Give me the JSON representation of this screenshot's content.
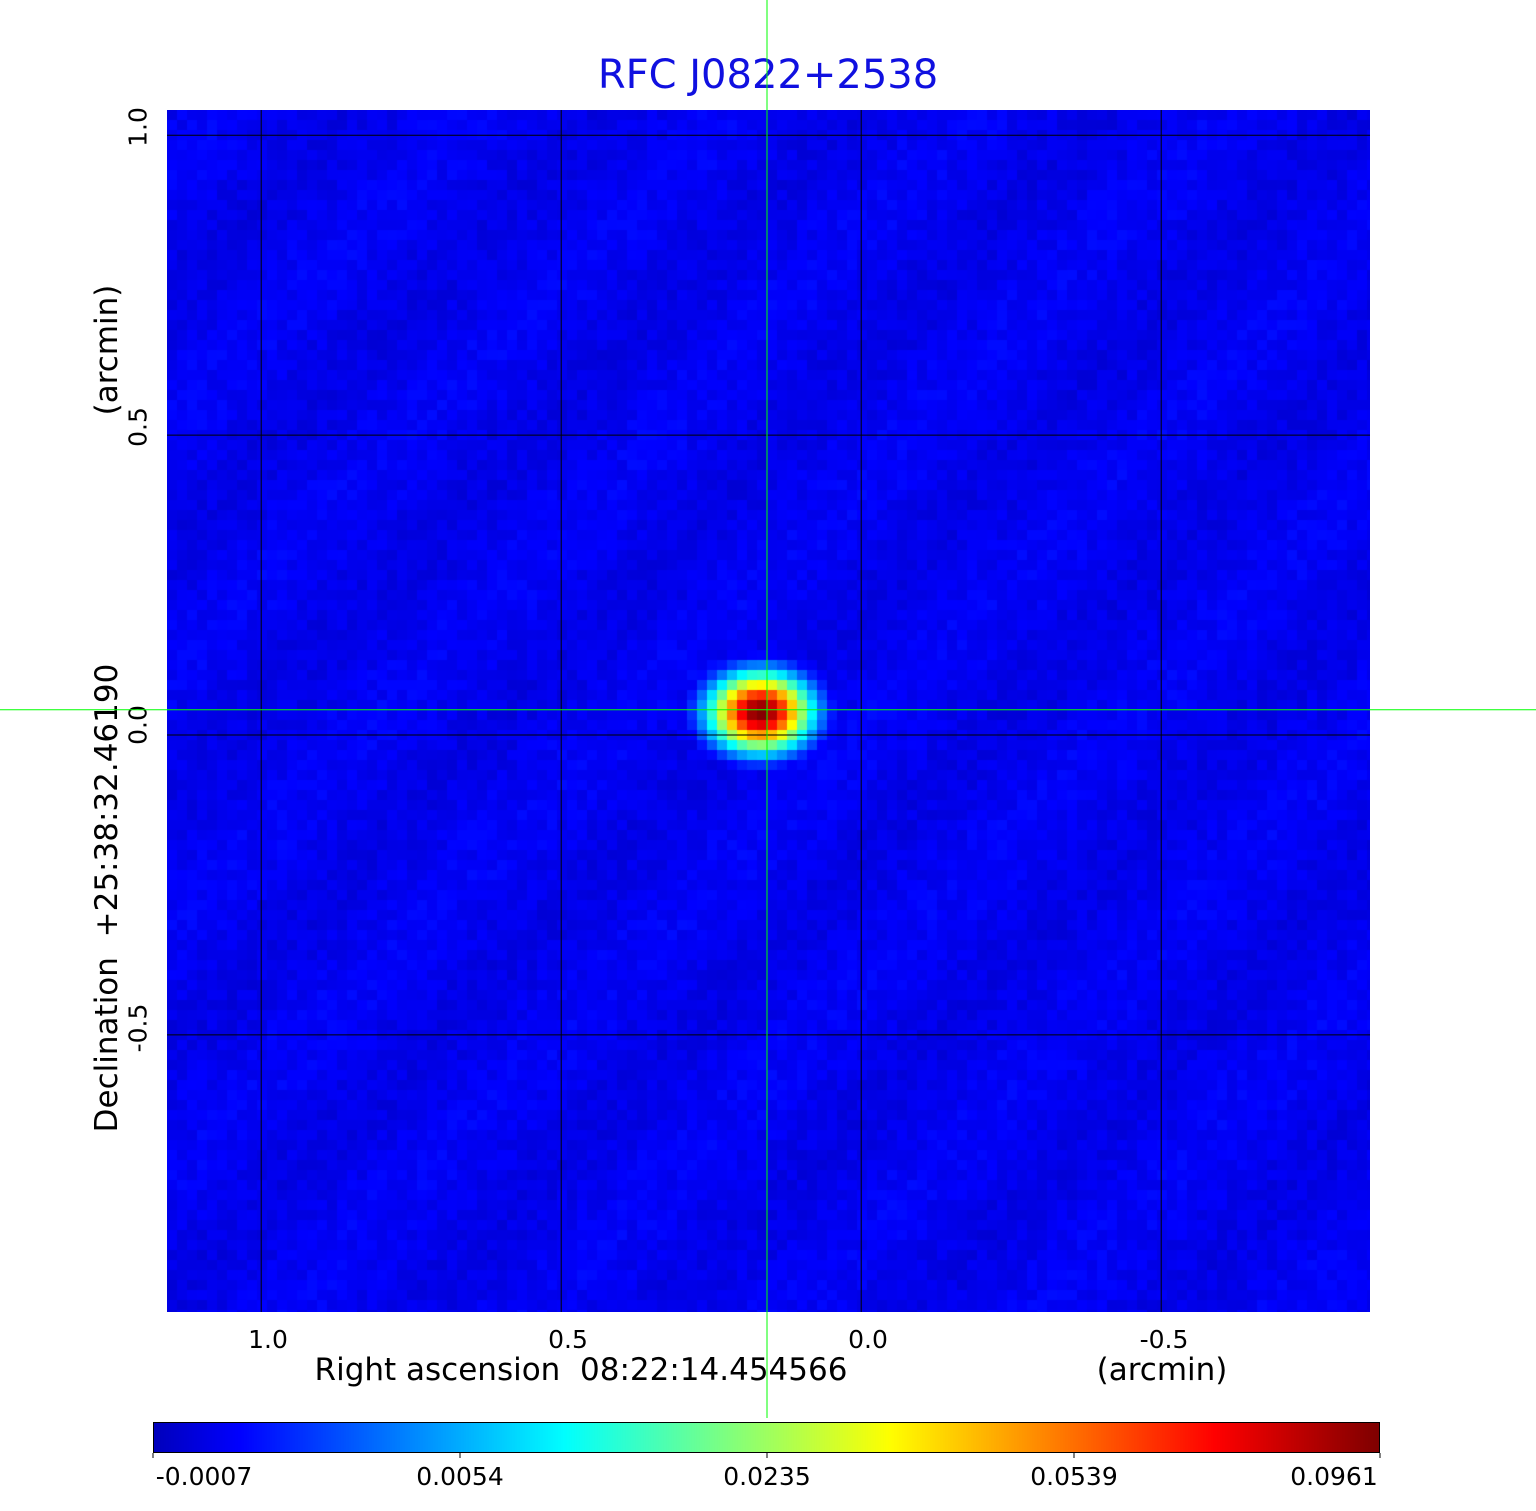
{
  "chart_data": {
    "type": "heatmap",
    "title": "RFC J0822+2538",
    "xlabel": "Right ascension  08:22:14.454566",
    "xlabel_unit": "(arcmin)",
    "ylabel": "Declination  +25:38:32.46190",
    "ylabel_unit": "(arcmin)",
    "xlim": [
      1.157,
      -0.848
    ],
    "ylim": [
      -0.962,
      1.042
    ],
    "xticks": [
      1.0,
      0.5,
      0.0,
      -0.5
    ],
    "xtick_labels": [
      "1.0",
      "0.5",
      "0.0",
      "-0.5"
    ],
    "yticks": [
      1.0,
      0.5,
      0.0,
      -0.5
    ],
    "ytick_labels": [
      "1.0",
      "0.5",
      "0.0",
      "-0.5"
    ],
    "grid": true,
    "colormap": "jet",
    "colorbar": {
      "range": [
        -0.0007,
        0.0961
      ],
      "tick_labels": [
        "-0.0007",
        "0.0054",
        "0.0235",
        "0.0539",
        "0.0961"
      ],
      "placement": "bottom"
    },
    "source": {
      "x": 0.168,
      "y": 0.038,
      "peak": 0.0961
    },
    "crosshair": {
      "x": 0.157,
      "y": 0.042,
      "color": "#00ff00"
    },
    "grid_color": "#000000",
    "title_color": "#1010e0"
  }
}
